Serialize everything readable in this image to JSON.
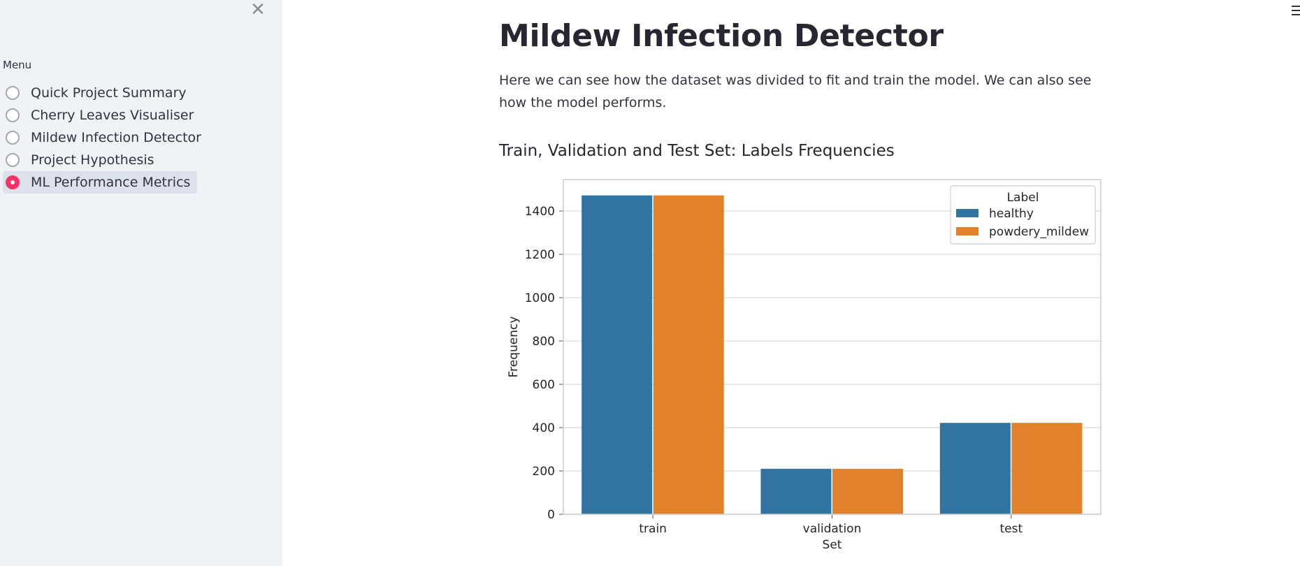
{
  "sidebar": {
    "close_glyph": "✕",
    "menu_label": "Menu",
    "items": [
      {
        "label": "Quick Project Summary",
        "selected": false
      },
      {
        "label": "Cherry Leaves Visualiser",
        "selected": false
      },
      {
        "label": "Mildew Infection Detector",
        "selected": false
      },
      {
        "label": "Project Hypothesis",
        "selected": false
      },
      {
        "label": "ML Performance Metrics",
        "selected": true
      }
    ],
    "accent_color": "#f63366"
  },
  "header": {
    "menu_icon": "hamburger-icon"
  },
  "main": {
    "title": "Mildew Infection Detector",
    "intro": "Here we can see how the dataset was divided to fit and train the model. We can also see how the model performs.",
    "section_title": "Train, Validation and Test Set: Labels Frequencies"
  },
  "chart_data": {
    "type": "bar",
    "categories": [
      "train",
      "validation",
      "test"
    ],
    "series": [
      {
        "name": "healthy",
        "values": [
          1472,
          210,
          422
        ],
        "color": "#3274a1"
      },
      {
        "name": "powdery_mildew",
        "values": [
          1472,
          210,
          422
        ],
        "color": "#e1812c"
      }
    ],
    "xlabel": "Set",
    "ylabel": "Frequency",
    "legend_title": "Label",
    "legend_position": "top-right",
    "yticks": [
      0,
      200,
      400,
      600,
      800,
      1000,
      1200,
      1400
    ],
    "ylim": [
      0,
      1545
    ],
    "grid": true
  }
}
